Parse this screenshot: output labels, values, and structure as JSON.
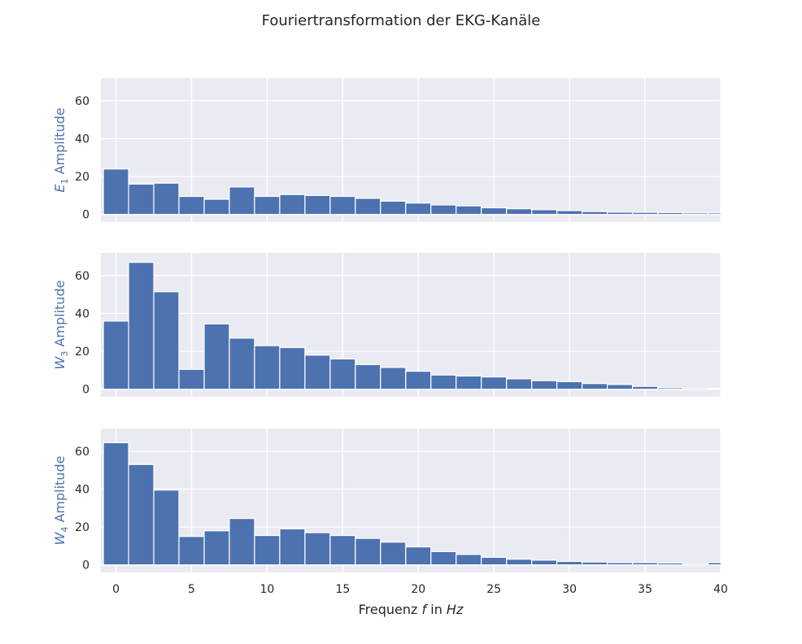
{
  "chart_data": {
    "type": "bar",
    "title": "Fouriertransformation der EKG-Kanäle",
    "xlabel": {
      "prefix": "Frequenz ",
      "var": "f",
      "mid": " in ",
      "unit": "Hz"
    },
    "xlim": [
      -1,
      40
    ],
    "ylim": [
      -4,
      72
    ],
    "xticks": [
      0,
      5,
      10,
      15,
      20,
      25,
      30,
      35,
      40
    ],
    "yticks": [
      0,
      20,
      40,
      60
    ],
    "bar_width": 1.667,
    "bar_color": "#4c72b0",
    "background_color": "#eaeaf2",
    "grid": true,
    "x": [
      0,
      1.667,
      3.333,
      5,
      6.667,
      8.333,
      10,
      11.667,
      13.333,
      15,
      16.667,
      18.333,
      20,
      21.667,
      23.333,
      25,
      26.667,
      28.333,
      30,
      31.667,
      33.333,
      35,
      36.667,
      38.333,
      40
    ],
    "panels": [
      {
        "ylabel": {
          "var": "E",
          "sub": "1",
          "text": " Amplitude"
        },
        "values": [
          24,
          16,
          16.5,
          9.5,
          8,
          14.5,
          9.5,
          10.5,
          10,
          9.5,
          8.5,
          7,
          6,
          5,
          4.5,
          3.5,
          3,
          2.5,
          2,
          1.5,
          1.2,
          1.1,
          1,
          0.8,
          0.8
        ]
      },
      {
        "ylabel": {
          "var": "W",
          "sub": "3",
          "text": " Amplitude"
        },
        "values": [
          36,
          67,
          51.5,
          10.5,
          34.5,
          27,
          23,
          22,
          18,
          16,
          13,
          11.5,
          9.5,
          7.5,
          7,
          6.5,
          5.5,
          4.5,
          4,
          3,
          2.5,
          1.5,
          0.8,
          0.6,
          0.5
        ]
      },
      {
        "ylabel": {
          "var": "W",
          "sub": "4",
          "text": " Amplitude"
        },
        "values": [
          64.5,
          53,
          39.5,
          15,
          18,
          24.5,
          15.5,
          19,
          17,
          15.5,
          14,
          12,
          9.5,
          7,
          5.5,
          4,
          3,
          2.5,
          1.8,
          1.5,
          1.2,
          1.2,
          1,
          0.6,
          1.2
        ]
      }
    ]
  }
}
